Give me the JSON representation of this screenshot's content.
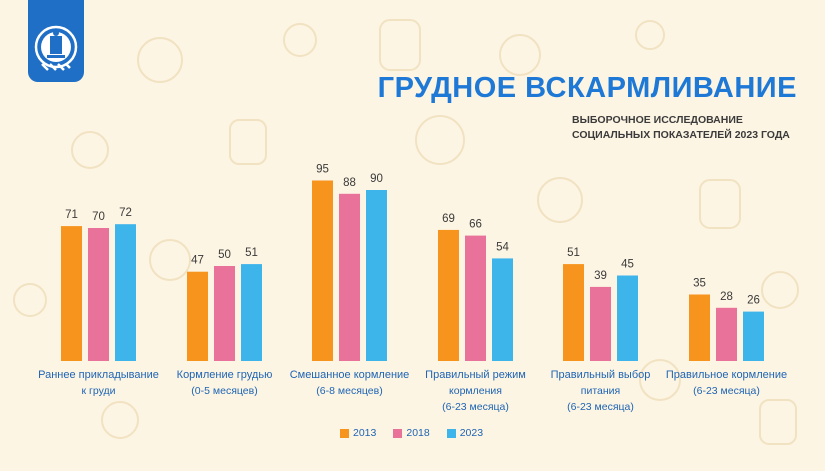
{
  "title": "ГРУДНОЕ ВСКАРМЛИВАНИЕ",
  "subtitle_lines": [
    "ВЫБОРОЧНОЕ ИССЛЕДОВАНИЕ",
    "СОЦИАЛЬНЫХ ПОКАЗАТЕЛЕЙ 2023 ГОДА"
  ],
  "logo_icon": "state-emblem-icon",
  "colors": {
    "background": "#fdf5e4",
    "title": "#1e78d6",
    "category_label": "#1e64b4",
    "value_label": "#3a3a3a"
  },
  "chart_data": {
    "type": "bar",
    "categories": [
      [
        "Раннее прикладывание",
        "к груди"
      ],
      [
        "Кормление грудью",
        "(0-5 месяцев)"
      ],
      [
        "Смешанное кормление",
        "(6-8 месяцев)"
      ],
      [
        "Правильный режим",
        "кормления",
        "(6-23 месяца)"
      ],
      [
        "Правильный выбор",
        "питания",
        "(6-23 месяца)"
      ],
      [
        "Правильное кормление",
        "(6-23 месяца)"
      ]
    ],
    "series": [
      {
        "name": "2013",
        "color": "#f7941d",
        "values": [
          71,
          47,
          95,
          69,
          51,
          35
        ]
      },
      {
        "name": "2018",
        "color": "#e8729a",
        "values": [
          70,
          50,
          88,
          66,
          39,
          28
        ]
      },
      {
        "name": "2023",
        "color": "#3db4ea",
        "values": [
          72,
          51,
          90,
          54,
          45,
          26
        ]
      }
    ],
    "data_labels": true,
    "grid": false,
    "legend": "bottom-center",
    "ylim": [
      0,
      100
    ]
  }
}
